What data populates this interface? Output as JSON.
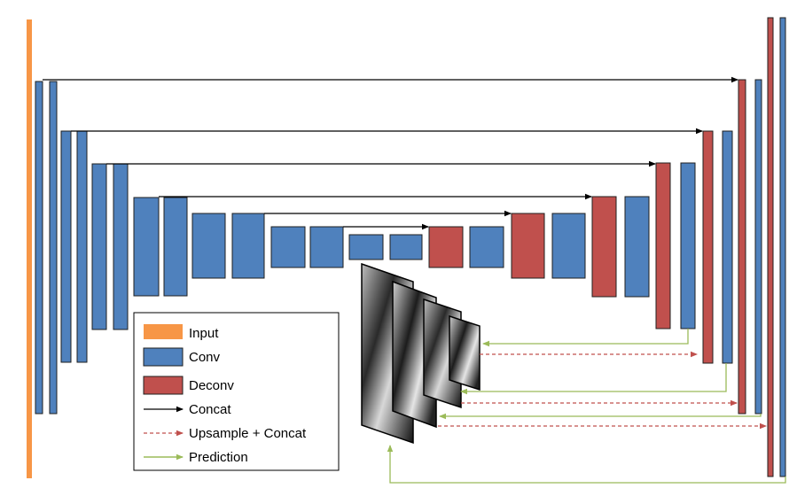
{
  "colors": {
    "input": "#f79646",
    "conv": "#4f81bd",
    "deconv": "#c0504d",
    "concat": "#000000",
    "upsample": "#c0504d",
    "prediction": "#9bbb59",
    "outline": "#1f1f1f"
  },
  "legend": {
    "items": [
      {
        "label": "Input",
        "kind": "input-swatch"
      },
      {
        "label": "Conv",
        "kind": "conv-swatch"
      },
      {
        "label": "Deconv",
        "kind": "deconv-swatch"
      },
      {
        "label": "Concat",
        "kind": "concat-arrow"
      },
      {
        "label": "Upsample + Concat",
        "kind": "upsample-arrow"
      },
      {
        "label": "Prediction",
        "kind": "prediction-arrow"
      }
    ]
  },
  "prediction_maps": {
    "count": 4
  }
}
